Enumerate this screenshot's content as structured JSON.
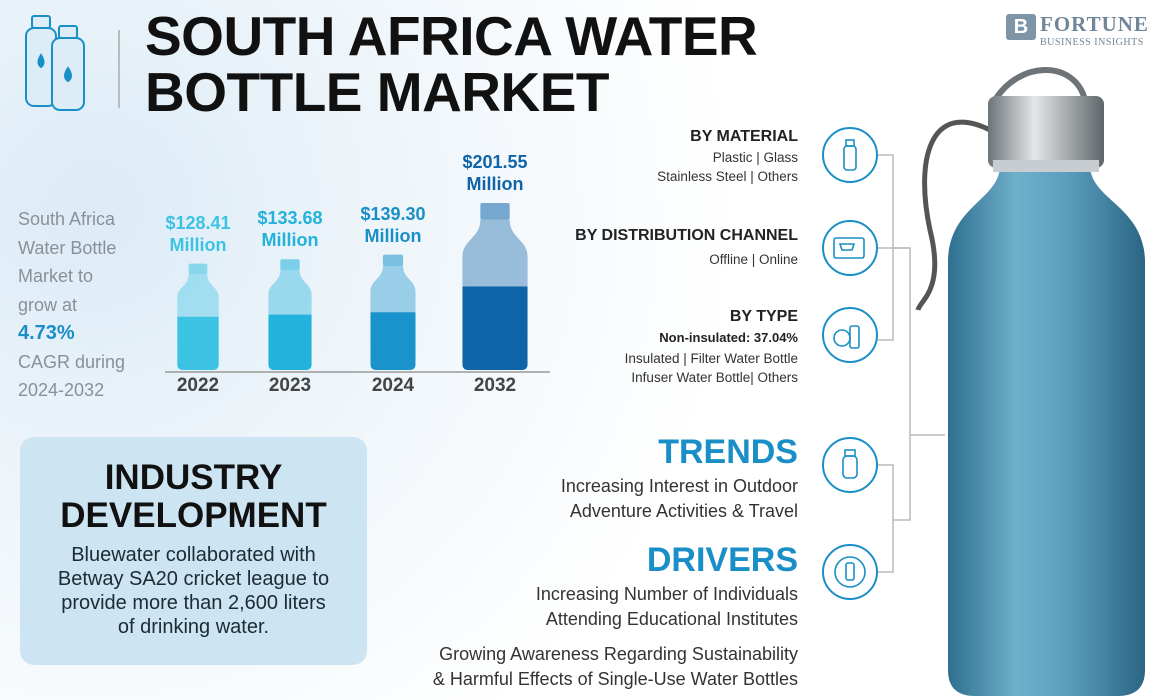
{
  "header": {
    "title_lines": [
      "SOUTH AFRICA WATER",
      "BOTTLE MARKET"
    ],
    "logo": "FORTUNE",
    "logo_sub": "BUSINESS INSIGHTS"
  },
  "summary": {
    "before": [
      "South Africa",
      "Water Bottle",
      "Market to",
      "grow at"
    ],
    "cagr": "4.73%",
    "after": [
      "CAGR during",
      "2024-2032"
    ]
  },
  "chart_data": {
    "type": "bar",
    "categories": [
      "2022",
      "2023",
      "2024",
      "2032"
    ],
    "values": [
      128.41,
      133.68,
      139.3,
      201.55
    ],
    "value_labels": [
      "$128.41 Million",
      "$133.68 Million",
      "$139.30 Million",
      "$201.55 Million"
    ],
    "colors": [
      "#3cc3e3",
      "#22b2db",
      "#1a93cc",
      "#0f64a8"
    ],
    "label_colors": [
      "#3cc3e3",
      "#22b2db",
      "#1a8fc7",
      "#0f64a8"
    ]
  },
  "industry_development": {
    "title": "INDUSTRY DEVELOPMENT",
    "lines": [
      "Bluewater collaborated with",
      "Betway SA20 cricket league to",
      "provide more than 2,600 liters",
      "of drinking water."
    ]
  },
  "segments": [
    {
      "title": "BY MATERIAL",
      "lines": [
        "Plastic  |  Glass",
        "Stainless Steel  |  Others"
      ]
    },
    {
      "title": "BY DISTRIBUTION CHANNEL",
      "lines": [
        "Offline  |  Online"
      ]
    },
    {
      "title": "BY TYPE",
      "highlight": "Non-insulated: 37.04%",
      "lines": [
        "Insulated  |  Filter Water Bottle",
        "Infuser Water Bottle|  Others"
      ]
    }
  ],
  "trends": {
    "title": "TRENDS",
    "lines": [
      "Increasing Interest in Outdoor",
      "Adventure Activities & Travel"
    ]
  },
  "drivers": {
    "title": "DRIVERS",
    "items": [
      [
        "Increasing Number of Individuals",
        "Attending Educational Institutes"
      ],
      [
        "Growing Awareness Regarding Sustainability",
        "& Harmful Effects of Single-Use Water Bottles"
      ]
    ]
  }
}
